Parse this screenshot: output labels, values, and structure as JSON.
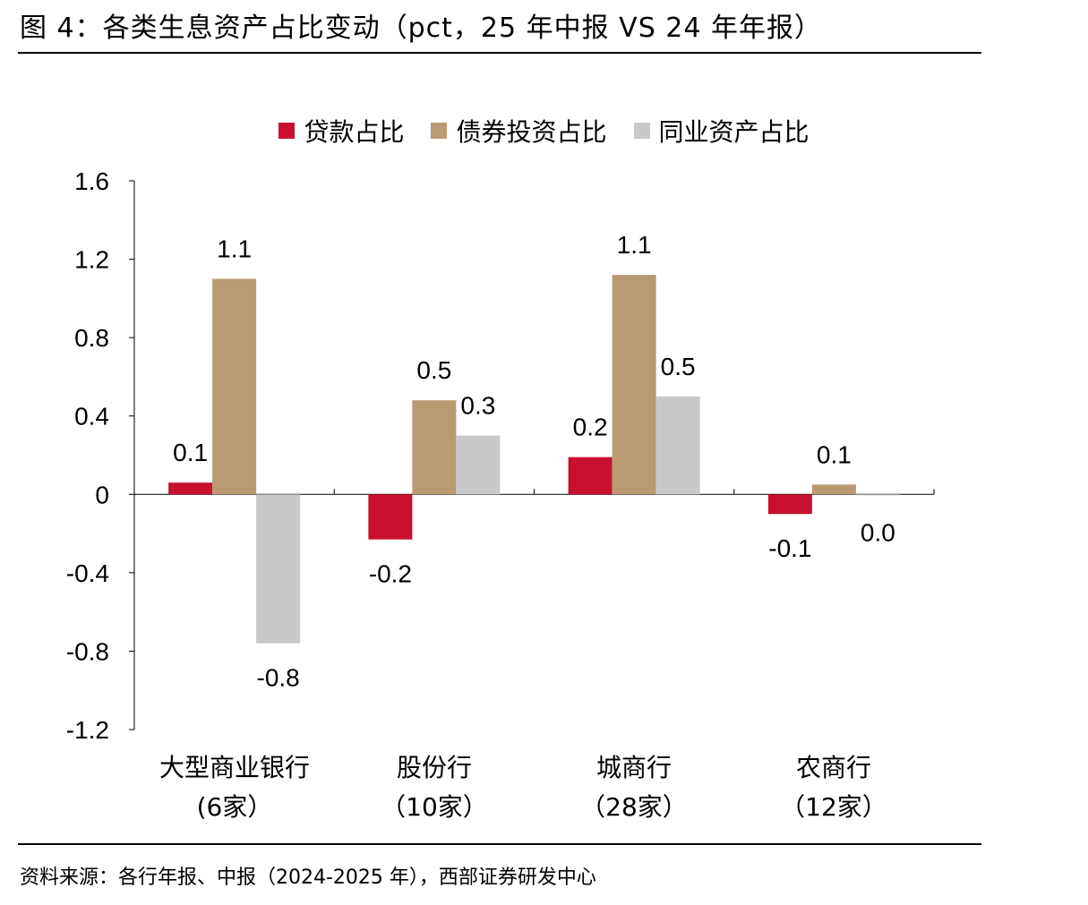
{
  "title": "图 4：各类生息资产占比变动（pct，25 年中报 VS 24 年年报）",
  "source": "资料来源：各行年报、中报（2024-2025 年），西部证券研发中心",
  "chart_data": {
    "type": "bar",
    "categories": [
      {
        "line1": "大型商业银行",
        "line2": "(6家）"
      },
      {
        "line1": "股份行",
        "line2": "（10家）"
      },
      {
        "line1": "城商行",
        "line2": "（28家）"
      },
      {
        "line1": "农商行",
        "line2": "（12家）"
      }
    ],
    "series": [
      {
        "name": "贷款占比",
        "color": "#C8102E",
        "values": [
          0.06,
          -0.23,
          0.19,
          -0.1
        ],
        "labels": [
          "0.1",
          "-0.2",
          "0.2",
          "-0.1"
        ]
      },
      {
        "name": "债券投资占比",
        "color": "#B99A73",
        "values": [
          1.1,
          0.48,
          1.12,
          0.05
        ],
        "labels": [
          "1.1",
          "0.5",
          "1.1",
          "0.1"
        ]
      },
      {
        "name": "同业资产占比",
        "color": "#C9C9C9",
        "values": [
          -0.76,
          0.3,
          0.5,
          0.0
        ],
        "labels": [
          "-0.8",
          "0.3",
          "0.5",
          "0.0"
        ]
      }
    ],
    "yticks": [
      "1.6",
      "1.2",
      "0.8",
      "0.4",
      "0",
      "-0.4",
      "-0.8",
      "-1.2"
    ],
    "ylim": [
      -1.2,
      1.6
    ],
    "legend_position": "top"
  }
}
